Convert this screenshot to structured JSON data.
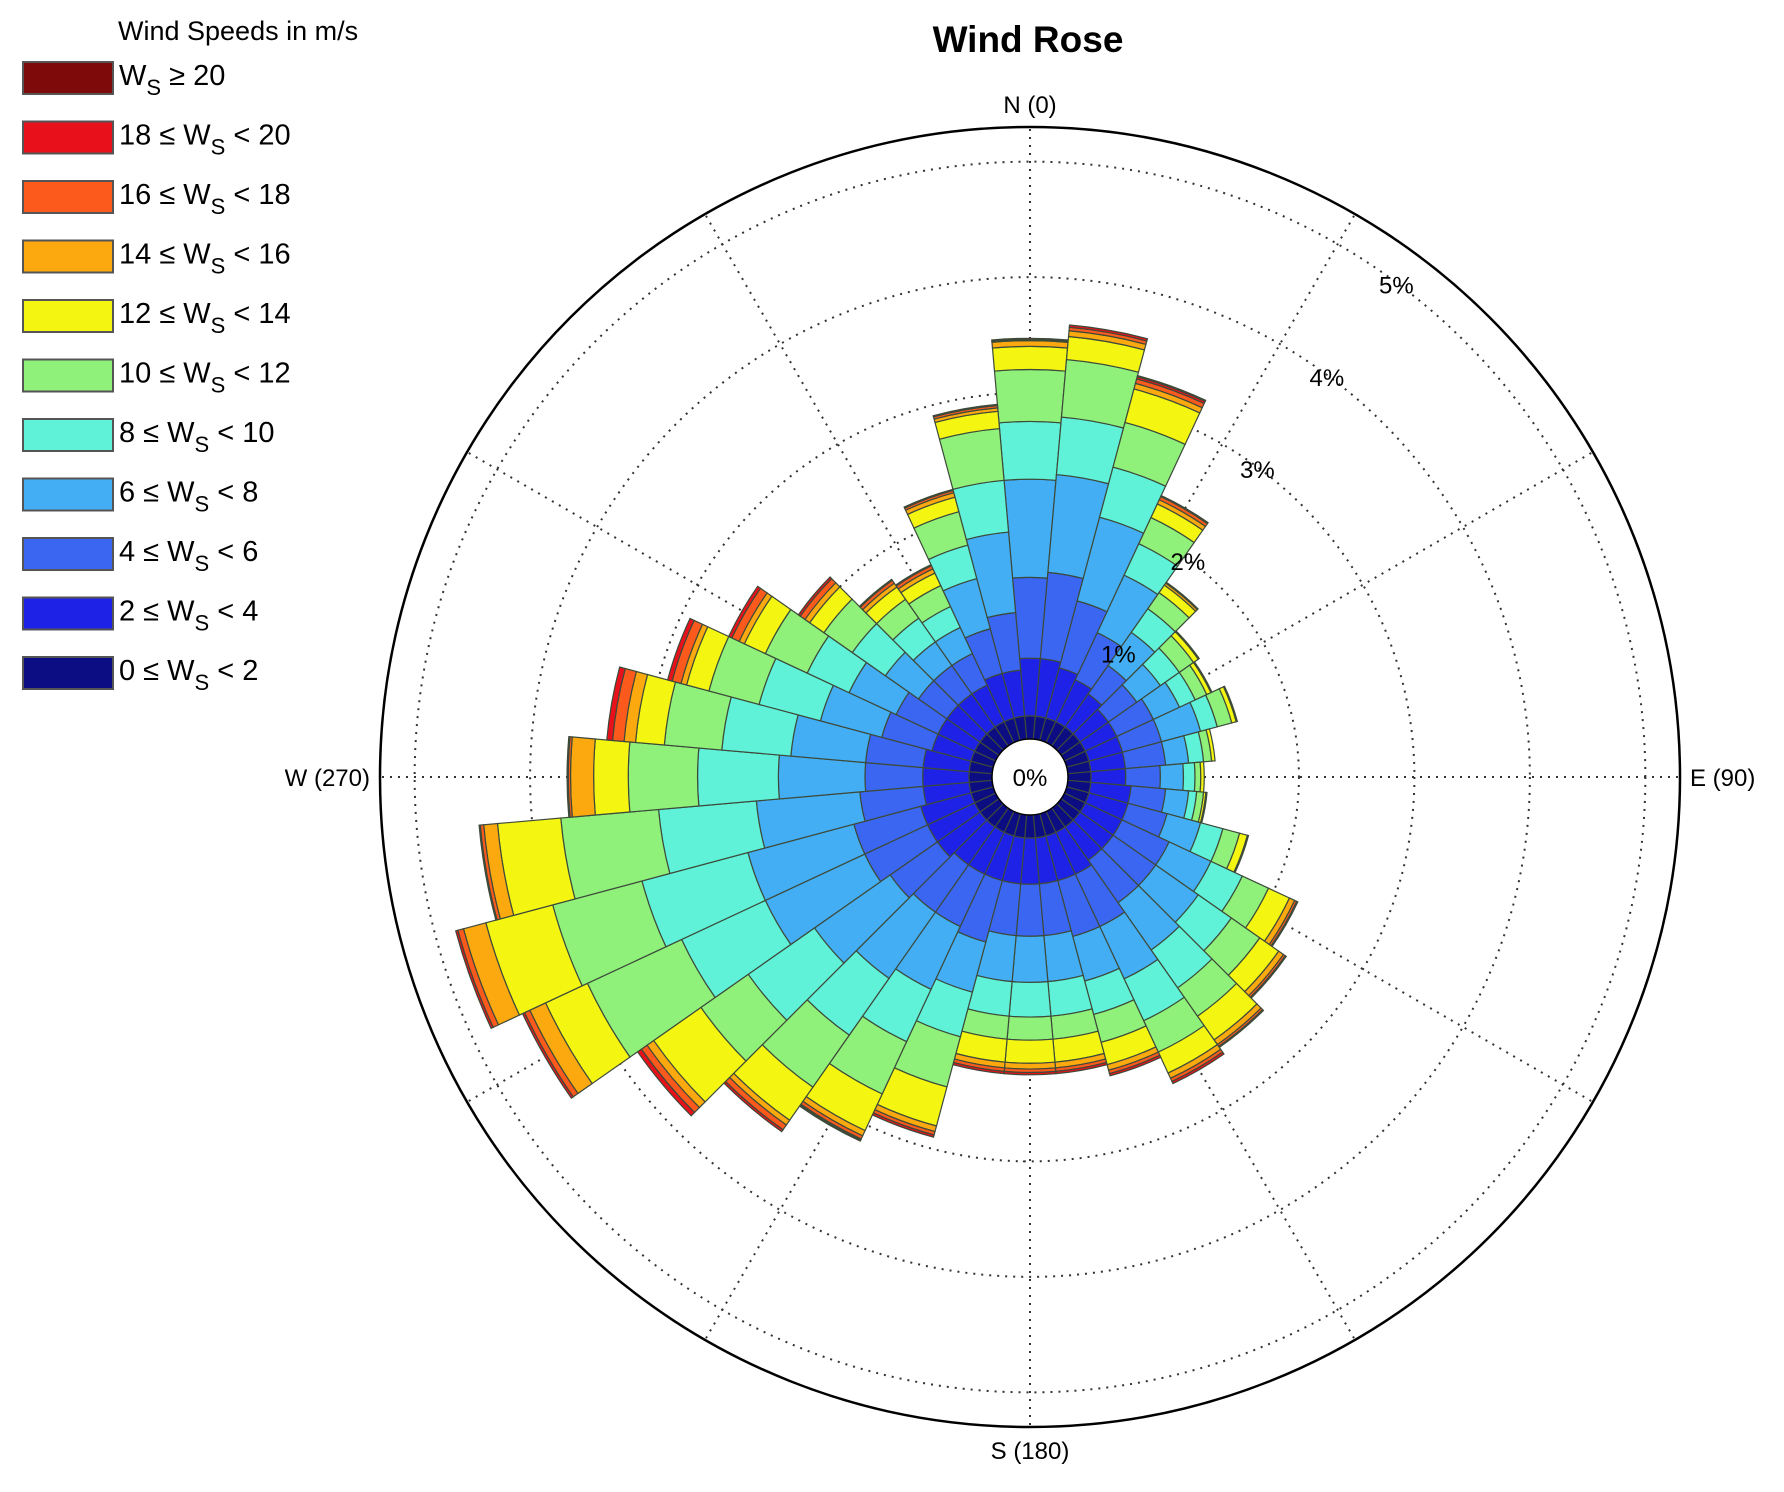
{
  "chart_data": {
    "type": "wind-rose",
    "title": "Wind Rose",
    "legend": {
      "title": "Wind Speeds in m/s",
      "placement": "top-left",
      "entries": [
        {
          "pre": "W",
          "sub": "S",
          "post": " ≥ 20",
          "color": "#7f0a0a"
        },
        {
          "pre": "18 ≤ W",
          "sub": "S",
          "post": " < 20",
          "color": "#e8101a"
        },
        {
          "pre": "16 ≤ W",
          "sub": "S",
          "post": " < 18",
          "color": "#fb5a1c"
        },
        {
          "pre": "14 ≤ W",
          "sub": "S",
          "post": " < 16",
          "color": "#fba90f"
        },
        {
          "pre": "12 ≤ W",
          "sub": "S",
          "post": " < 14",
          "color": "#f4f511"
        },
        {
          "pre": "10 ≤ W",
          "sub": "S",
          "post": " < 12",
          "color": "#8ff07a"
        },
        {
          "pre": "8 ≤ W",
          "sub": "S",
          "post": " < 10",
          "color": "#5ff2d9"
        },
        {
          "pre": "6 ≤ W",
          "sub": "S",
          "post": " < 8",
          "color": "#43aef3"
        },
        {
          "pre": "4 ≤ W",
          "sub": "S",
          "post": " < 6",
          "color": "#3a66f2"
        },
        {
          "pre": "2 ≤ W",
          "sub": "S",
          "post": " < 4",
          "color": "#1e22e6"
        },
        {
          "pre": "0 ≤ W",
          "sub": "S",
          "post": " < 2",
          "color": "#0c0d82"
        }
      ]
    },
    "directions": [
      {
        "label": "N (0)",
        "angle": 0
      },
      {
        "label": "E (90)",
        "angle": 90
      },
      {
        "label": "S (180)",
        "angle": 180
      },
      {
        "label": "W (270)",
        "angle": 270
      }
    ],
    "rings": [
      {
        "label": "0%",
        "value": 0
      },
      {
        "label": "1%",
        "value": 1
      },
      {
        "label": "2%",
        "value": 2
      },
      {
        "label": "3%",
        "value": 3
      },
      {
        "label": "4%",
        "value": 4
      },
      {
        "label": "5%",
        "value": 5
      }
    ],
    "rmax": 5.3,
    "sector_width_deg": 10,
    "speed_bins": [
      "0-2",
      "2-4",
      "4-6",
      "6-8",
      "8-10",
      "10-12",
      "12-14",
      "14-16",
      "16-18",
      "18-20",
      ">=20"
    ],
    "sectors": [
      {
        "dir": 0,
        "cum": [
          0.2,
          0.7,
          1.4,
          2.25,
          2.75,
          3.2,
          3.4,
          3.45,
          3.46,
          3.47,
          3.47
        ]
      },
      {
        "dir": 10,
        "cum": [
          0.2,
          0.7,
          1.45,
          2.3,
          2.8,
          3.3,
          3.5,
          3.55,
          3.58,
          3.6,
          3.6
        ]
      },
      {
        "dir": 20,
        "cum": [
          0.2,
          0.65,
          1.25,
          2.0,
          2.45,
          2.85,
          3.15,
          3.2,
          3.24,
          3.26,
          3.27
        ]
      },
      {
        "dir": 30,
        "cum": [
          0.2,
          0.6,
          1.05,
          1.6,
          1.9,
          2.15,
          2.28,
          2.32,
          2.35,
          2.36,
          2.36
        ]
      },
      {
        "dir": 40,
        "cum": [
          0.2,
          0.55,
          0.85,
          1.2,
          1.45,
          1.62,
          1.7,
          1.72,
          1.73,
          1.73,
          1.73
        ]
      },
      {
        "dir": 50,
        "cum": [
          0.2,
          0.5,
          0.8,
          1.05,
          1.25,
          1.4,
          1.45,
          1.46,
          1.46,
          1.46,
          1.46
        ]
      },
      {
        "dir": 60,
        "cum": [
          0.2,
          0.5,
          0.85,
          1.1,
          1.25,
          1.36,
          1.4,
          1.41,
          1.41,
          1.41,
          1.41
        ]
      },
      {
        "dir": 70,
        "cum": [
          0.2,
          0.5,
          0.85,
          1.2,
          1.35,
          1.48,
          1.52,
          1.53,
          1.53,
          1.53,
          1.53
        ]
      },
      {
        "dir": 80,
        "cum": [
          0.2,
          0.5,
          0.85,
          1.05,
          1.18,
          1.25,
          1.28,
          1.28,
          1.28,
          1.28,
          1.28
        ]
      },
      {
        "dir": 90,
        "cum": [
          0.2,
          0.5,
          0.8,
          1.0,
          1.1,
          1.15,
          1.18,
          1.18,
          1.18,
          1.18,
          1.18
        ]
      },
      {
        "dir": 100,
        "cum": [
          0.2,
          0.55,
          0.85,
          1.05,
          1.12,
          1.18,
          1.2,
          1.21,
          1.21,
          1.21,
          1.21
        ]
      },
      {
        "dir": 110,
        "cum": [
          0.2,
          0.55,
          0.9,
          1.2,
          1.4,
          1.55,
          1.62,
          1.63,
          1.63,
          1.63,
          1.63
        ]
      },
      {
        "dir": 120,
        "cum": [
          0.2,
          0.55,
          1.0,
          1.4,
          1.7,
          1.95,
          2.15,
          2.2,
          2.22,
          2.23,
          2.23
        ]
      },
      {
        "dir": 130,
        "cum": [
          0.2,
          0.55,
          1.0,
          1.45,
          1.8,
          2.1,
          2.3,
          2.35,
          2.37,
          2.38,
          2.38
        ]
      },
      {
        "dir": 140,
        "cum": [
          0.2,
          0.55,
          1.0,
          1.5,
          1.9,
          2.2,
          2.45,
          2.5,
          2.52,
          2.53,
          2.53
        ]
      },
      {
        "dir": 150,
        "cum": [
          0.2,
          0.6,
          1.1,
          1.6,
          2.0,
          2.3,
          2.5,
          2.55,
          2.58,
          2.6,
          2.6
        ]
      },
      {
        "dir": 160,
        "cum": [
          0.2,
          0.6,
          1.1,
          1.5,
          1.8,
          2.05,
          2.25,
          2.3,
          2.33,
          2.35,
          2.35
        ]
      },
      {
        "dir": 170,
        "cum": [
          0.2,
          0.6,
          1.05,
          1.45,
          1.75,
          1.95,
          2.15,
          2.2,
          2.23,
          2.25,
          2.25
        ]
      },
      {
        "dir": 180,
        "cum": [
          0.2,
          0.6,
          1.05,
          1.45,
          1.75,
          1.95,
          2.15,
          2.2,
          2.23,
          2.25,
          2.25
        ]
      },
      {
        "dir": 190,
        "cum": [
          0.2,
          0.6,
          1.05,
          1.45,
          1.75,
          1.95,
          2.15,
          2.2,
          2.23,
          2.25,
          2.25
        ]
      },
      {
        "dir": 200,
        "cum": [
          0.2,
          0.6,
          1.15,
          1.6,
          2.0,
          2.45,
          2.8,
          2.85,
          2.88,
          2.9,
          2.9
        ]
      },
      {
        "dir": 210,
        "cum": [
          0.2,
          0.6,
          1.1,
          1.7,
          2.2,
          2.7,
          3.05,
          3.1,
          3.13,
          3.14,
          3.15
        ]
      },
      {
        "dir": 220,
        "cum": [
          0.2,
          0.6,
          1.1,
          1.8,
          2.4,
          2.95,
          3.3,
          3.35,
          3.4,
          3.42,
          3.42
        ]
      },
      {
        "dir": 230,
        "cum": [
          0.2,
          0.65,
          1.15,
          1.95,
          2.65,
          3.15,
          3.65,
          3.72,
          3.78,
          3.82,
          3.82
        ]
      },
      {
        "dir": 240,
        "cum": [
          0.2,
          0.65,
          1.25,
          2.2,
          3.0,
          3.9,
          4.3,
          4.45,
          4.5,
          4.52,
          4.52
        ]
      },
      {
        "dir": 250,
        "cum": [
          0.2,
          0.65,
          1.25,
          2.2,
          3.15,
          3.95,
          4.55,
          4.75,
          4.8,
          4.82,
          4.82
        ]
      },
      {
        "dir": 260,
        "cum": [
          0.2,
          0.6,
          1.15,
          2.05,
          2.9,
          3.75,
          4.3,
          4.42,
          4.45,
          4.46,
          4.46
        ]
      },
      {
        "dir": 270,
        "cum": [
          0.2,
          0.6,
          1.1,
          1.85,
          2.55,
          3.15,
          3.45,
          3.65,
          3.67,
          3.68,
          3.68
        ]
      },
      {
        "dir": 280,
        "cum": [
          0.2,
          0.6,
          1.1,
          1.75,
          2.35,
          2.85,
          3.1,
          3.2,
          3.3,
          3.35,
          3.35
        ]
      },
      {
        "dir": 290,
        "cum": [
          0.2,
          0.55,
          1.0,
          1.55,
          2.1,
          2.55,
          2.75,
          2.8,
          2.88,
          2.92,
          2.92
        ]
      },
      {
        "dir": 300,
        "cum": [
          0.2,
          0.55,
          0.95,
          1.4,
          1.8,
          2.2,
          2.4,
          2.45,
          2.52,
          2.55,
          2.55
        ]
      },
      {
        "dir": 310,
        "cum": [
          0.2,
          0.55,
          0.85,
          1.2,
          1.55,
          1.85,
          2.0,
          2.05,
          2.1,
          2.12,
          2.12
        ]
      },
      {
        "dir": 320,
        "cum": [
          0.2,
          0.55,
          0.85,
          1.1,
          1.35,
          1.55,
          1.68,
          1.72,
          1.75,
          1.76,
          1.76
        ]
      },
      {
        "dir": 330,
        "cum": [
          0.2,
          0.55,
          0.85,
          1.1,
          1.3,
          1.5,
          1.62,
          1.66,
          1.69,
          1.7,
          1.7
        ]
      },
      {
        "dir": 340,
        "cum": [
          0.2,
          0.6,
          1.0,
          1.45,
          1.75,
          2.05,
          2.18,
          2.22,
          2.24,
          2.25,
          2.25
        ]
      },
      {
        "dir": 350,
        "cum": [
          0.2,
          0.6,
          1.1,
          1.8,
          2.25,
          2.7,
          2.85,
          2.88,
          2.9,
          2.91,
          2.91
        ]
      }
    ]
  }
}
